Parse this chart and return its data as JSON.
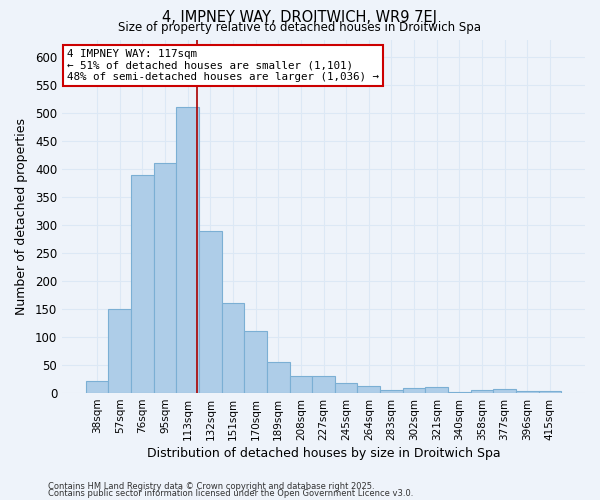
{
  "title1": "4, IMPNEY WAY, DROITWICH, WR9 7EJ",
  "title2": "Size of property relative to detached houses in Droitwich Spa",
  "xlabel": "Distribution of detached houses by size in Droitwich Spa",
  "ylabel": "Number of detached properties",
  "categories": [
    "38sqm",
    "57sqm",
    "76sqm",
    "95sqm",
    "113sqm",
    "132sqm",
    "151sqm",
    "170sqm",
    "189sqm",
    "208sqm",
    "227sqm",
    "245sqm",
    "264sqm",
    "283sqm",
    "302sqm",
    "321sqm",
    "340sqm",
    "358sqm",
    "377sqm",
    "396sqm",
    "415sqm"
  ],
  "values": [
    22,
    150,
    390,
    410,
    510,
    290,
    160,
    110,
    55,
    30,
    30,
    18,
    12,
    6,
    9,
    10,
    2,
    5,
    7,
    3,
    4
  ],
  "bar_color": "#aecde8",
  "bar_edge_color": "#7bafd4",
  "grid_color": "#dce8f5",
  "annotation_text": "4 IMPNEY WAY: 117sqm\n← 51% of detached houses are smaller (1,101)\n48% of semi-detached houses are larger (1,036) →",
  "vline_x": 4.42,
  "vline_color": "#aa0000",
  "annotation_box_color": "#ffffff",
  "annotation_box_edge": "#cc0000",
  "ylim": [
    0,
    630
  ],
  "yticks": [
    0,
    50,
    100,
    150,
    200,
    250,
    300,
    350,
    400,
    450,
    500,
    550,
    600
  ],
  "footnote1": "Contains HM Land Registry data © Crown copyright and database right 2025.",
  "footnote2": "Contains public sector information licensed under the Open Government Licence v3.0.",
  "background_color": "#eef3fa",
  "plot_bg_color": "#eef3fa"
}
